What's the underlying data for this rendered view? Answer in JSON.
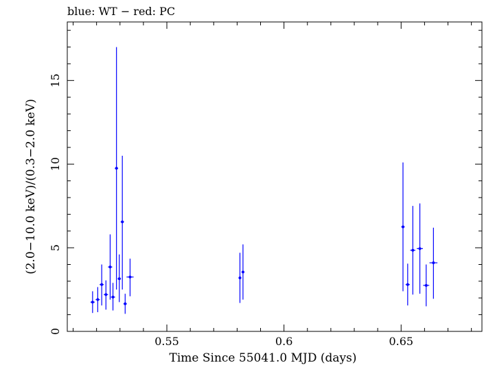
{
  "chart_data": {
    "type": "scatter",
    "title": "blue: WT − red: PC",
    "xlabel": "Time Since 55041.0 MJD (days)",
    "ylabel": "(2.0−10.0 keV)/(0.3−2.0 keV)",
    "xlim": [
      0.5075,
      0.6845
    ],
    "ylim": [
      0,
      18.5
    ],
    "x_ticks": [
      {
        "value": 0.55,
        "label": "0.55"
      },
      {
        "value": 0.6,
        "label": "0.6"
      },
      {
        "value": 0.65,
        "label": "0.65"
      }
    ],
    "y_ticks": [
      {
        "value": 0,
        "label": "0"
      },
      {
        "value": 5,
        "label": "5"
      },
      {
        "value": 10,
        "label": "10"
      },
      {
        "value": 15,
        "label": "15"
      }
    ],
    "series": [
      {
        "name": "WT",
        "color": "#0000ff",
        "points": [
          {
            "x": 0.5183,
            "y": 1.75,
            "xerr": 0.0009,
            "ylo": 1.1,
            "yhi": 2.4
          },
          {
            "x": 0.5205,
            "y": 1.9,
            "xerr": 0.0009,
            "ylo": 1.15,
            "yhi": 2.65
          },
          {
            "x": 0.5222,
            "y": 2.8,
            "xerr": 0.0009,
            "ylo": 1.55,
            "yhi": 4.0
          },
          {
            "x": 0.524,
            "y": 2.2,
            "xerr": 0.0009,
            "ylo": 1.3,
            "yhi": 3.05
          },
          {
            "x": 0.5258,
            "y": 3.85,
            "xerr": 0.0009,
            "ylo": 1.9,
            "yhi": 5.8
          },
          {
            "x": 0.527,
            "y": 2.05,
            "xerr": 0.0009,
            "ylo": 1.25,
            "yhi": 2.9
          },
          {
            "x": 0.5285,
            "y": 9.75,
            "xerr": 0.0007,
            "ylo": 2.5,
            "yhi": 17.0
          },
          {
            "x": 0.5297,
            "y": 3.15,
            "xerr": 0.0007,
            "ylo": 1.75,
            "yhi": 4.6
          },
          {
            "x": 0.531,
            "y": 6.55,
            "xerr": 0.0007,
            "ylo": 2.5,
            "yhi": 10.5
          },
          {
            "x": 0.5322,
            "y": 1.65,
            "xerr": 0.0007,
            "ylo": 1.05,
            "yhi": 2.25
          },
          {
            "x": 0.5343,
            "y": 3.25,
            "xerr": 0.0015,
            "ylo": 2.1,
            "yhi": 4.35
          },
          {
            "x": 0.5812,
            "y": 3.2,
            "xerr": 0.0006,
            "ylo": 1.7,
            "yhi": 4.7
          },
          {
            "x": 0.5825,
            "y": 3.55,
            "xerr": 0.0006,
            "ylo": 1.9,
            "yhi": 5.2
          },
          {
            "x": 0.6508,
            "y": 6.25,
            "xerr": 0.0007,
            "ylo": 2.4,
            "yhi": 10.1
          },
          {
            "x": 0.6528,
            "y": 2.8,
            "xerr": 0.0009,
            "ylo": 1.55,
            "yhi": 4.05
          },
          {
            "x": 0.655,
            "y": 4.85,
            "xerr": 0.0011,
            "ylo": 2.2,
            "yhi": 7.5
          },
          {
            "x": 0.658,
            "y": 4.95,
            "xerr": 0.0013,
            "ylo": 2.25,
            "yhi": 7.65
          },
          {
            "x": 0.6607,
            "y": 2.75,
            "xerr": 0.0013,
            "ylo": 1.5,
            "yhi": 4.0
          },
          {
            "x": 0.6638,
            "y": 4.1,
            "xerr": 0.0017,
            "ylo": 1.95,
            "yhi": 6.2
          }
        ]
      }
    ]
  }
}
